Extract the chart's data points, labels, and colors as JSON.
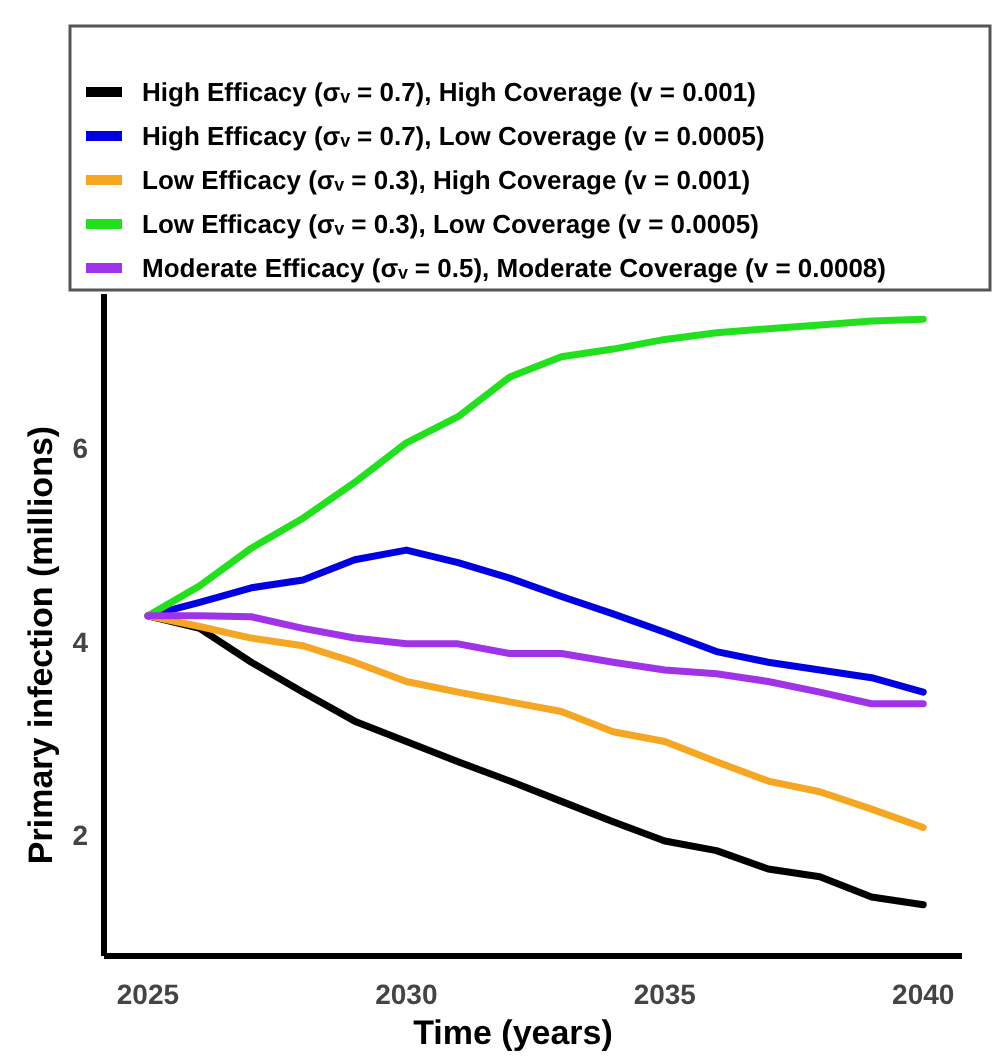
{
  "chart_data": {
    "type": "line",
    "xlabel": "Time (years)",
    "ylabel": "Primary infection (millions)",
    "x": [
      2025,
      2026,
      2027,
      2028,
      2029,
      2030,
      2031,
      2032,
      2033,
      2034,
      2035,
      2036,
      2037,
      2038,
      2039,
      2040
    ],
    "xlim": [
      2024.15,
      2040.75
    ],
    "xticks": [
      2025,
      2030,
      2035,
      2040
    ],
    "ylim": [
      0.75,
      7.6
    ],
    "yticks": [
      2,
      4,
      6
    ],
    "grid": false,
    "legend": "top",
    "line_style": "solid",
    "series": [
      {
        "name": "High Efficacy (σᵥ = 0.7), High Coverage (v = 0.001)",
        "color": "#000000",
        "values": [
          4.27,
          4.14,
          3.79,
          3.48,
          3.18,
          2.97,
          2.76,
          2.56,
          2.35,
          2.14,
          1.94,
          1.84,
          1.65,
          1.57,
          1.36,
          1.28
        ]
      },
      {
        "name": "High Efficacy (σᵥ = 0.7), Low Coverage (v = 0.0005)",
        "color": "#0000e0",
        "values": [
          4.27,
          4.41,
          4.56,
          4.64,
          4.85,
          4.95,
          4.82,
          4.66,
          4.47,
          4.29,
          4.1,
          3.9,
          3.79,
          3.71,
          3.63,
          3.48
        ]
      },
      {
        "name": "Low Efficacy (σᵥ = 0.3), High Coverage (v = 0.001)",
        "color": "#f5a623",
        "values": [
          4.27,
          4.16,
          4.04,
          3.96,
          3.79,
          3.59,
          3.48,
          3.38,
          3.28,
          3.07,
          2.97,
          2.76,
          2.56,
          2.45,
          2.27,
          2.08
        ]
      },
      {
        "name": "Low Efficacy (σᵥ = 0.3), Low Coverage (v = 0.0005)",
        "color": "#22e01e",
        "values": [
          4.27,
          4.58,
          4.97,
          5.28,
          5.65,
          6.06,
          6.33,
          6.74,
          6.95,
          7.03,
          7.13,
          7.2,
          7.24,
          7.28,
          7.32,
          7.34
        ]
      },
      {
        "name": "Moderate Efficacy (σᵥ = 0.5), Moderate Coverage (v = 0.0008)",
        "color": "#a033e8",
        "values": [
          4.27,
          4.27,
          4.26,
          4.14,
          4.04,
          3.98,
          3.98,
          3.88,
          3.88,
          3.79,
          3.71,
          3.67,
          3.59,
          3.48,
          3.36,
          3.36
        ]
      }
    ]
  }
}
